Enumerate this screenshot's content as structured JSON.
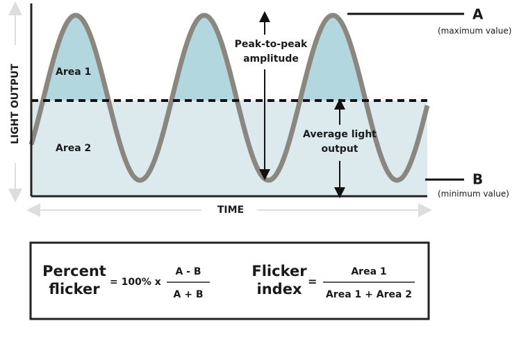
{
  "graph": {
    "y_axis_label": "LIGHT OUTPUT",
    "x_axis_label": "TIME",
    "area1": "Area 1",
    "area2": "Area 2",
    "peak_to_peak": [
      "Peak-to-peak",
      "amplitude"
    ],
    "average": [
      "Average light",
      "output"
    ],
    "max_label": "A",
    "max_note": "(maximum value)",
    "min_label": "B",
    "min_note": "(minimum value)"
  },
  "formulas": {
    "percent_flicker": {
      "name": [
        "Percent",
        "flicker"
      ],
      "equals": "= 100% x",
      "numerator": "A - B",
      "denominator": "A + B"
    },
    "flicker_index": {
      "name": [
        "Flicker",
        "index"
      ],
      "equals": "=",
      "numerator": "Area 1",
      "denominator": "Area 1 + Area 2"
    }
  }
}
